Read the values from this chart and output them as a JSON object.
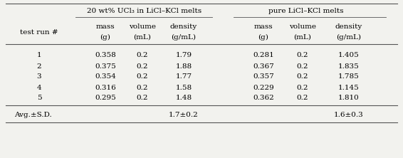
{
  "title_ucl3": "20 wt% UCl₃ in LiCl–KCl melts",
  "title_pure": "pure LiCl–KCl melts",
  "col_label_row1": [
    "mass",
    "volume",
    "density",
    "mass",
    "volume",
    "density"
  ],
  "col_label_row2": [
    "(g)",
    "(mL)",
    "(g/mL)",
    "(g)",
    "(mL)",
    "(g/mL)"
  ],
  "row_label": "test run #",
  "runs": [
    "1",
    "2",
    "3",
    "4",
    "5"
  ],
  "ucl3_mass": [
    "0.358",
    "0.375",
    "0.354",
    "0.316",
    "0.295"
  ],
  "ucl3_volume": [
    "0.2",
    "0.2",
    "0.2",
    "0.2",
    "0.2"
  ],
  "ucl3_density": [
    "1.79",
    "1.88",
    "1.77",
    "1.58",
    "1.48"
  ],
  "pure_mass": [
    "0.281",
    "0.367",
    "0.357",
    "0.229",
    "0.362"
  ],
  "pure_volume": [
    "0.2",
    "0.2",
    "0.2",
    "0.2",
    "0.2"
  ],
  "pure_density": [
    "1.405",
    "1.835",
    "1.785",
    "1.145",
    "1.810"
  ],
  "avg_label": "Avg.±S.D.",
  "avg_ucl3": "1.7±0.2",
  "avg_pure": "1.6±0.3",
  "bg_color": "#f2f2ee",
  "font_size": 7.5
}
